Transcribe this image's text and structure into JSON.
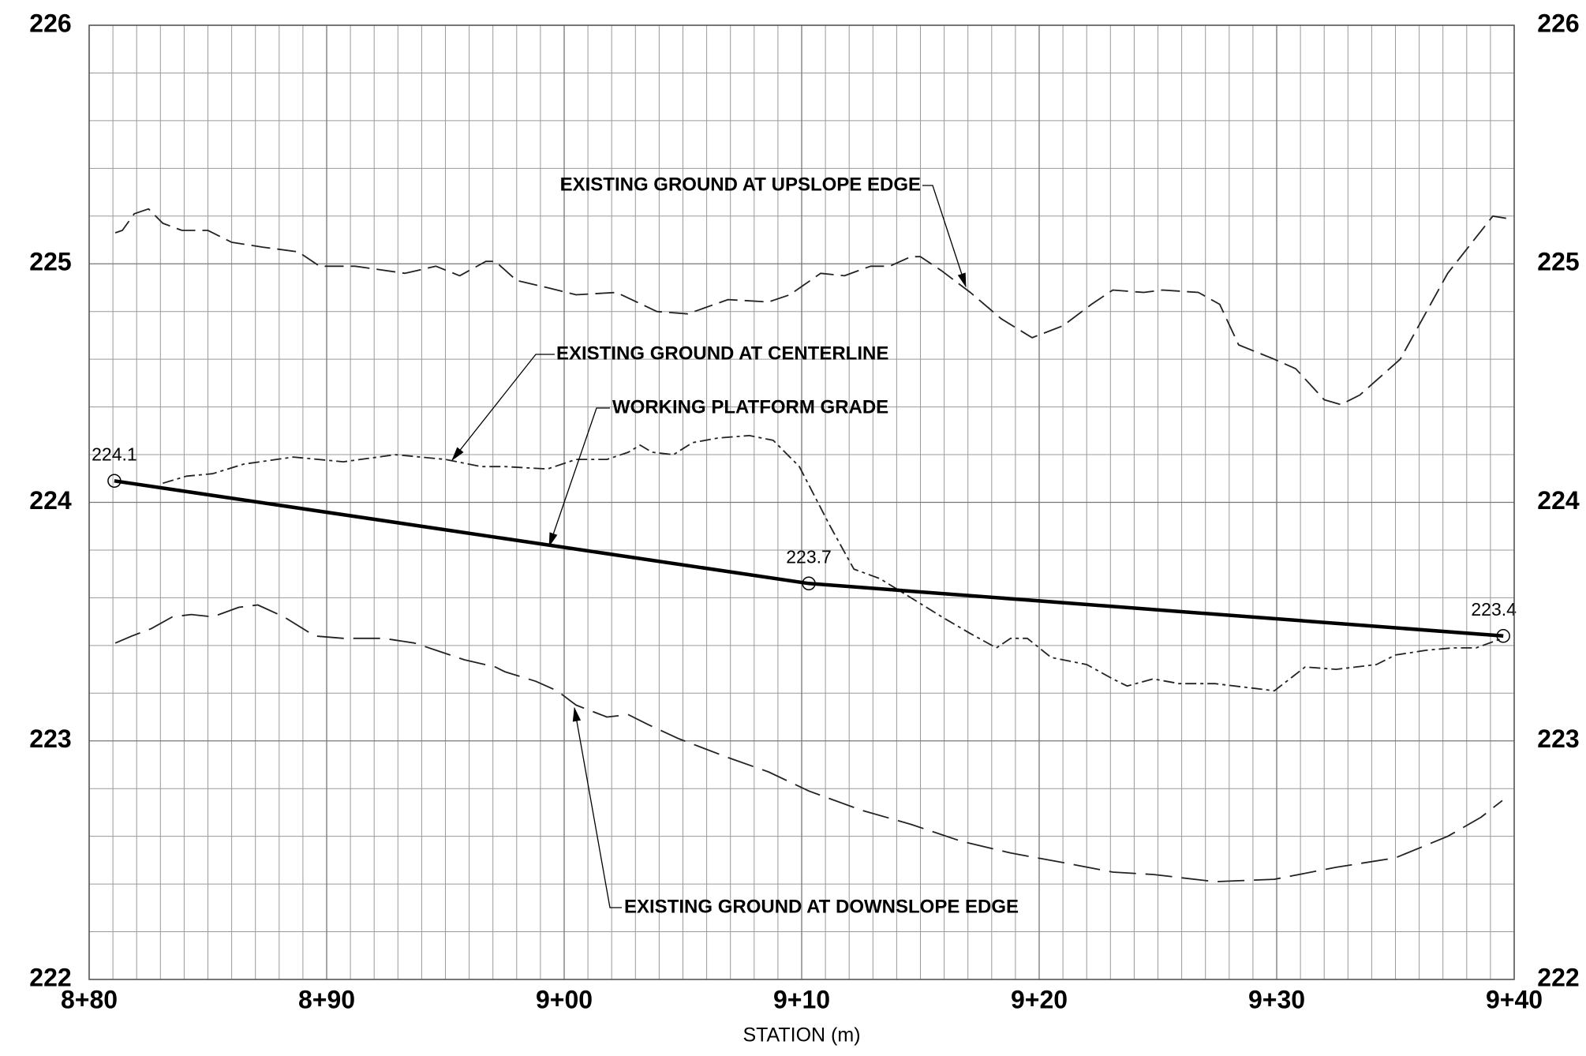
{
  "chart_data": {
    "type": "line",
    "xlabel": "STATION (m)",
    "xlim": [
      880,
      940
    ],
    "xticks": [
      {
        "value": 880,
        "label": "8+80"
      },
      {
        "value": 890,
        "label": "8+90"
      },
      {
        "value": 900,
        "label": "9+00"
      },
      {
        "value": 910,
        "label": "9+10"
      },
      {
        "value": 920,
        "label": "9+20"
      },
      {
        "value": 930,
        "label": "9+30"
      },
      {
        "value": 940,
        "label": "9+40"
      }
    ],
    "ylim": [
      222,
      226
    ],
    "yticks": [
      222,
      223,
      224,
      225,
      226
    ],
    "grid": true,
    "series": [
      {
        "name": "EXISTING GROUND AT UPSLOPE EDGE",
        "color": "#222222",
        "style": "dashed",
        "x": [
          881.1,
          881.4,
          881.9,
          882.5,
          883.1,
          883.9,
          885.0,
          886.0,
          887.3,
          888.8,
          889.7,
          891.2,
          893.3,
          894.6,
          895.6,
          896.7,
          897.1,
          898.0,
          899.3,
          900.5,
          902.2,
          903.9,
          905.2,
          906.9,
          908.6,
          909.5,
          910.8,
          911.8,
          912.9,
          913.7,
          914.6,
          915.0,
          915.9,
          917.1,
          918.4,
          919.7,
          921.0,
          922.2,
          923.1,
          924.4,
          925.2,
          926.7,
          927.6,
          928.4,
          929.9,
          930.8,
          932.0,
          932.7,
          933.5,
          935.2,
          937.2,
          939.1,
          939.7
        ],
        "values": [
          225.13,
          225.14,
          225.21,
          225.23,
          225.17,
          225.14,
          225.14,
          225.09,
          225.07,
          225.05,
          224.99,
          224.99,
          224.96,
          224.99,
          224.95,
          225.01,
          225.01,
          224.93,
          224.9,
          224.87,
          224.88,
          224.8,
          224.79,
          224.85,
          224.84,
          224.87,
          224.96,
          224.95,
          224.99,
          224.99,
          225.03,
          225.03,
          224.97,
          224.88,
          224.77,
          224.69,
          224.74,
          224.83,
          224.89,
          224.88,
          224.89,
          224.88,
          224.83,
          224.66,
          224.6,
          224.56,
          224.43,
          224.41,
          224.45,
          224.6,
          224.96,
          225.2,
          225.19
        ]
      },
      {
        "name": "EXISTING GROUND AT CENTERLINE",
        "color": "#222222",
        "style": "dashed",
        "x": [
          883.1,
          884.1,
          885.2,
          886.5,
          888.6,
          890.7,
          892.9,
          895.0,
          896.5,
          897.5,
          899.3,
          900.5,
          901.8,
          902.7,
          903.2,
          903.7,
          904.6,
          905.4,
          906.5,
          907.8,
          908.8,
          909.9,
          911.2,
          912.2,
          913.3,
          914.6,
          915.9,
          917.1,
          918.2,
          918.8,
          919.5,
          920.5,
          922.0,
          923.1,
          923.7,
          924.8,
          925.9,
          927.4,
          929.1,
          929.9,
          931.2,
          932.5,
          934.2,
          935.0,
          936.3,
          937.4,
          938.4,
          939.5
        ],
        "values": [
          224.08,
          224.11,
          224.12,
          224.16,
          224.19,
          224.17,
          224.2,
          224.18,
          224.15,
          224.15,
          224.14,
          224.18,
          224.18,
          224.21,
          224.24,
          224.21,
          224.2,
          224.25,
          224.27,
          224.28,
          224.26,
          224.15,
          223.9,
          223.72,
          223.68,
          223.6,
          223.52,
          223.45,
          223.39,
          223.43,
          223.43,
          223.35,
          223.32,
          223.26,
          223.23,
          223.26,
          223.24,
          223.24,
          223.22,
          223.21,
          223.31,
          223.3,
          223.32,
          223.36,
          223.38,
          223.39,
          223.39,
          223.43
        ]
      },
      {
        "name": "WORKING PLATFORM GRADE",
        "color": "#000000",
        "style": "solid",
        "markers": true,
        "x": [
          881.06,
          910.3,
          939.54
        ],
        "values": [
          224.09,
          223.66,
          223.44
        ],
        "value_labels": [
          "224.1",
          "223.7",
          "223.4"
        ]
      },
      {
        "name": "EXISTING GROUND AT DOWNSLOPE EDGE",
        "color": "#222222",
        "style": "dashed",
        "x": [
          881.1,
          881.8,
          882.6,
          883.5,
          884.3,
          885.2,
          886.3,
          887.1,
          888.2,
          889.5,
          890.7,
          892.4,
          893.7,
          894.6,
          895.8,
          897.1,
          897.5,
          898.8,
          899.7,
          900.5,
          901.8,
          902.7,
          903.5,
          904.8,
          906.9,
          908.6,
          910.3,
          912.5,
          914.6,
          916.7,
          918.8,
          921.0,
          923.1,
          924.8,
          927.4,
          929.9,
          932.5,
          935.0,
          937.2,
          938.6,
          939.5
        ],
        "values": [
          223.41,
          223.44,
          223.47,
          223.52,
          223.53,
          223.52,
          223.56,
          223.57,
          223.52,
          223.44,
          223.43,
          223.43,
          223.41,
          223.38,
          223.34,
          223.31,
          223.29,
          223.25,
          223.21,
          223.15,
          223.1,
          223.11,
          223.07,
          223.01,
          222.93,
          222.87,
          222.79,
          222.71,
          222.65,
          222.58,
          222.53,
          222.49,
          222.45,
          222.44,
          222.41,
          222.42,
          222.47,
          222.51,
          222.6,
          222.68,
          222.75
        ]
      }
    ]
  }
}
